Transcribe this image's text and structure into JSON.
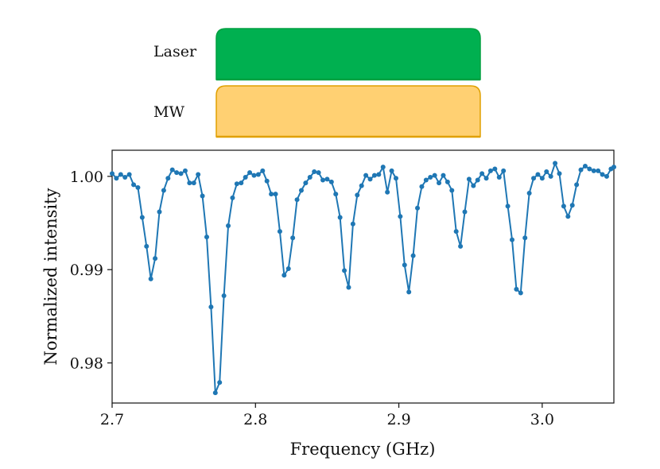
{
  "sequence": {
    "laser_label": "Laser",
    "mw_label": "MW",
    "laser_color": "#00b050",
    "mw_color": "#ffd072",
    "mw_edge_color": "#e0a000",
    "laser_edge_color": "#00a040"
  },
  "chart_data": {
    "type": "line",
    "title": "",
    "xlabel": "Frequency (GHz)",
    "ylabel": "Normalized intensity",
    "xlim": [
      2.7,
      3.05
    ],
    "ylim": [
      0.9757,
      1.0028
    ],
    "xticks": [
      2.7,
      2.8,
      2.9,
      3.0
    ],
    "xtick_labels": [
      "2.7",
      "2.8",
      "2.9",
      "3.0"
    ],
    "yticks": [
      0.98,
      0.99,
      1.0
    ],
    "ytick_labels": [
      "0.98",
      "0.99",
      "1.00"
    ],
    "grid": false,
    "series_color": "#1f77b4",
    "series": [
      {
        "name": "",
        "x": [
          2.7,
          2.703,
          2.706,
          2.709,
          2.712,
          2.715,
          2.718,
          2.721,
          2.724,
          2.727,
          2.73,
          2.733,
          2.736,
          2.739,
          2.742,
          2.745,
          2.748,
          2.751,
          2.754,
          2.757,
          2.76,
          2.763,
          2.766,
          2.769,
          2.772,
          2.775,
          2.778,
          2.781,
          2.784,
          2.787,
          2.79,
          2.793,
          2.796,
          2.799,
          2.802,
          2.805,
          2.808,
          2.811,
          2.814,
          2.817,
          2.82,
          2.823,
          2.826,
          2.829,
          2.832,
          2.835,
          2.838,
          2.841,
          2.844,
          2.847,
          2.85,
          2.853,
          2.856,
          2.859,
          2.862,
          2.865,
          2.868,
          2.871,
          2.874,
          2.877,
          2.88,
          2.883,
          2.886,
          2.889,
          2.892,
          2.895,
          2.898,
          2.901,
          2.904,
          2.907,
          2.91,
          2.913,
          2.916,
          2.919,
          2.922,
          2.925,
          2.928,
          2.931,
          2.934,
          2.937,
          2.94,
          2.943,
          2.946,
          2.949,
          2.952,
          2.955,
          2.958,
          2.961,
          2.964,
          2.967,
          2.97,
          2.973,
          2.976,
          2.979,
          2.982,
          2.985,
          2.988,
          2.991,
          2.994,
          2.997,
          3.0,
          3.003,
          3.006,
          3.009,
          3.012,
          3.015,
          3.018,
          3.021,
          3.024,
          3.027,
          3.03,
          3.033,
          3.036,
          3.039,
          3.042,
          3.045,
          3.048,
          3.05
        ],
        "y": [
          1.0003,
          0.9998,
          1.0002,
          0.9999,
          1.0002,
          0.9991,
          0.9988,
          0.9956,
          0.9925,
          0.989,
          0.9912,
          0.9962,
          0.9985,
          0.9998,
          1.0007,
          1.0004,
          1.0003,
          1.0006,
          0.9993,
          0.9993,
          1.0002,
          0.9979,
          0.9935,
          0.986,
          0.9768,
          0.9779,
          0.9872,
          0.9947,
          0.9977,
          0.9992,
          0.9993,
          0.9999,
          1.0004,
          1.0001,
          1.0002,
          1.0006,
          0.9995,
          0.9981,
          0.9981,
          0.9941,
          0.9894,
          0.9901,
          0.9934,
          0.9975,
          0.9985,
          0.9993,
          0.9999,
          1.0005,
          1.0004,
          0.9996,
          0.9997,
          0.9994,
          0.9981,
          0.9956,
          0.9899,
          0.9881,
          0.9949,
          0.998,
          0.999,
          1.0001,
          0.9997,
          1.0001,
          1.0002,
          1.001,
          0.9983,
          1.0006,
          0.9998,
          0.9957,
          0.9905,
          0.9876,
          0.9915,
          0.9966,
          0.9989,
          0.9996,
          0.9999,
          1.0001,
          0.9993,
          1.0001,
          0.9994,
          0.9985,
          0.9941,
          0.9925,
          0.9962,
          0.9997,
          0.999,
          0.9996,
          1.0003,
          0.9998,
          1.0006,
          1.0008,
          0.9999,
          1.0006,
          0.9968,
          0.9932,
          0.9879,
          0.9875,
          0.9934,
          0.9982,
          0.9998,
          1.0002,
          0.9998,
          1.0005,
          1.0,
          1.0014,
          1.0003,
          0.9968,
          0.9957,
          0.9969,
          0.9991,
          1.0007,
          1.0011,
          1.0008,
          1.0006,
          1.0006,
          1.0002,
          1.0,
          1.0008,
          1.001
        ]
      }
    ]
  }
}
